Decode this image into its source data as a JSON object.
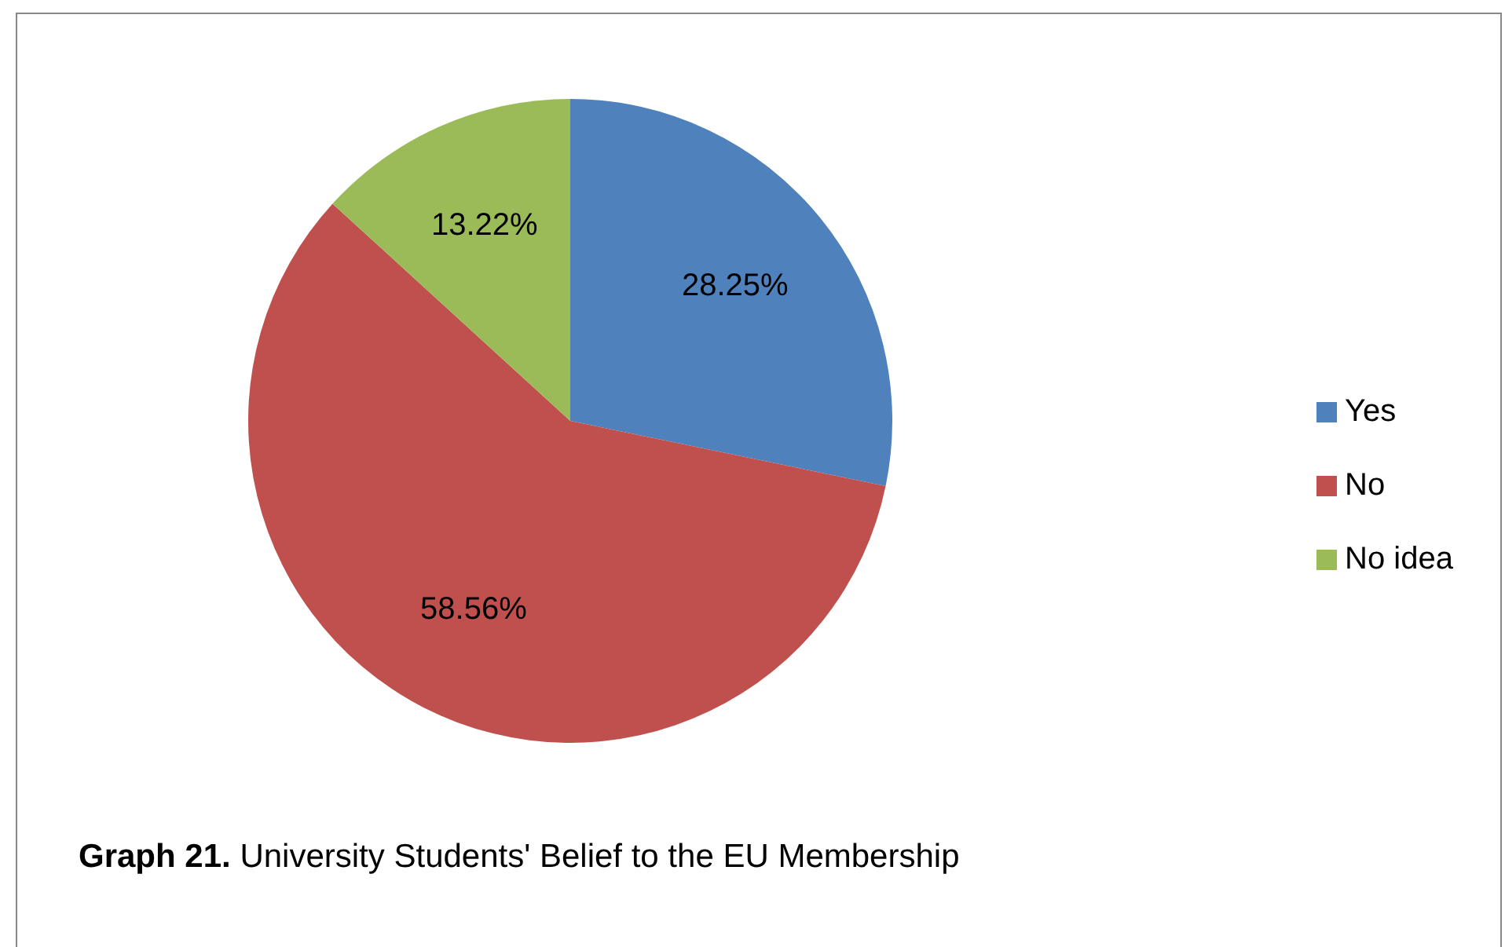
{
  "chart_data": {
    "type": "pie",
    "title": "Graph 21. University Students' Belief to the EU Membership",
    "categories": [
      "Yes",
      "No",
      "No idea"
    ],
    "values": [
      28.25,
      58.56,
      13.22
    ],
    "value_labels": [
      "28.25%",
      "58.56%",
      "13.22%"
    ],
    "colors": [
      "#4f81bd",
      "#c0504d",
      "#9bbb59"
    ],
    "legend": "right"
  }
}
